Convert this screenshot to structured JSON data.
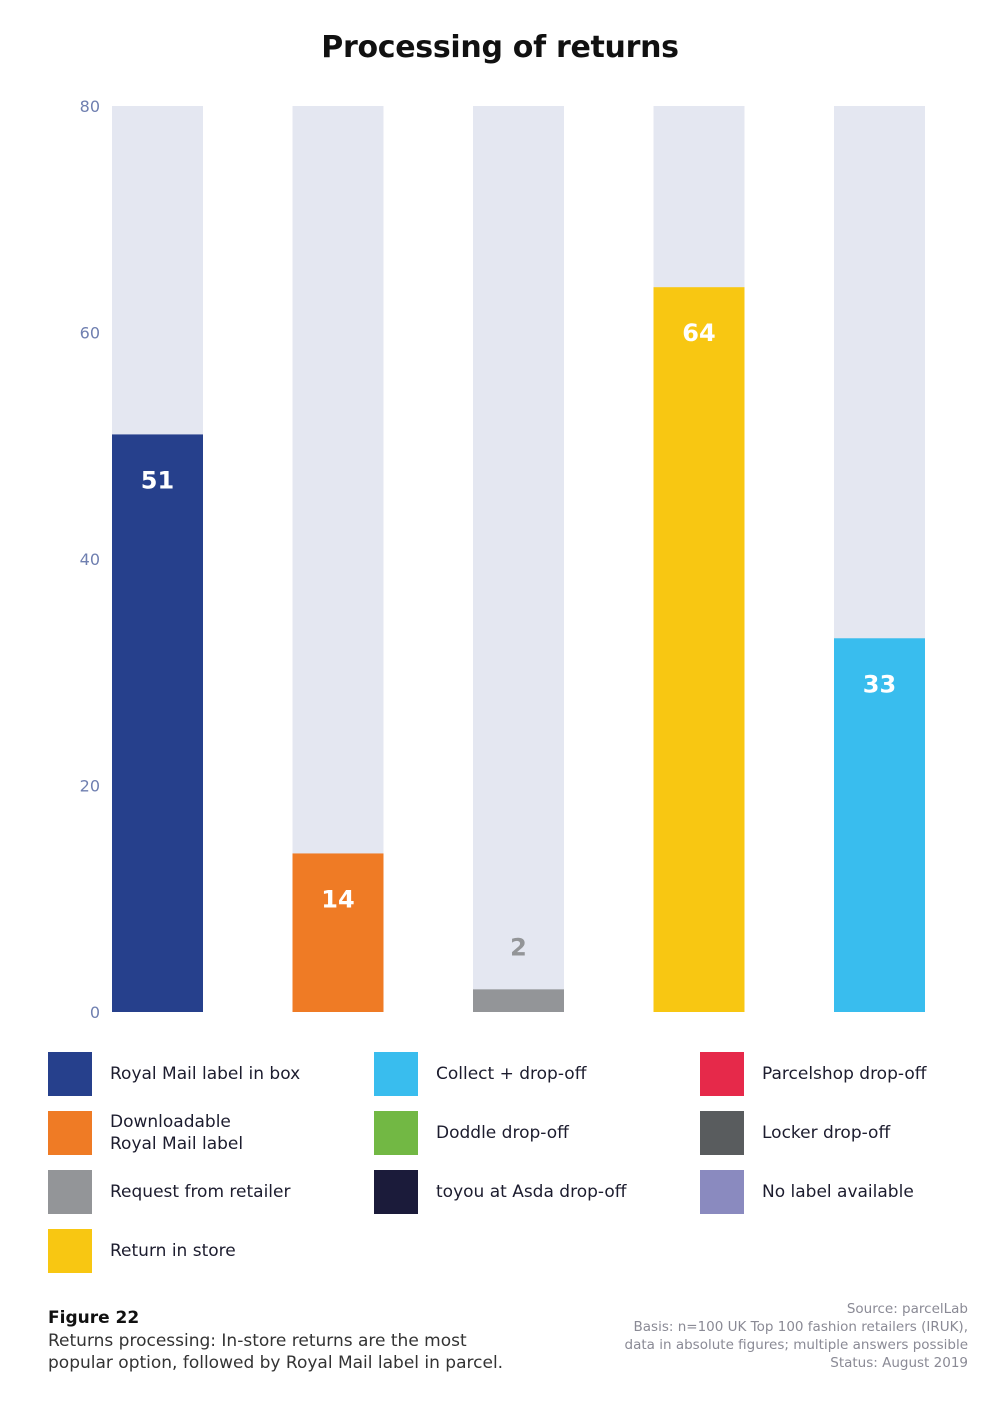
{
  "chart_data": {
    "type": "bar",
    "title": "Processing of returns",
    "categories": [
      "Royal Mail label in box",
      "Downloadable Royal Mail label",
      "Request from retailer",
      "Return in store",
      "Collect + drop-off"
    ],
    "values": [
      51,
      14,
      2,
      64,
      33
    ],
    "value_labels": [
      "51",
      "14",
      "2",
      "64",
      "33"
    ],
    "bar_colors": [
      "#26408c",
      "#ef7b25",
      "#939598",
      "#f8c712",
      "#39bdee"
    ],
    "label_colors": [
      "#ffffff",
      "#ffffff",
      "#939598",
      "#ffffff",
      "#ffffff"
    ],
    "background_bar_color": "#e4e7f1",
    "ylim": [
      0,
      80
    ],
    "yticks": [
      "0",
      "20",
      "40",
      "60",
      "80"
    ],
    "xlabel": "",
    "ylabel": "",
    "grid": false,
    "legend_position": "bottom",
    "legend": [
      {
        "label": "Royal Mail label in box",
        "color": "#26408c"
      },
      {
        "label": "Downloadable\nRoyal Mail label",
        "color": "#ef7b25"
      },
      {
        "label": "Request from retailer",
        "color": "#939598"
      },
      {
        "label": "Return in store",
        "color": "#f8c712"
      },
      {
        "label": "Collect + drop-off",
        "color": "#39bdee"
      },
      {
        "label": "Doddle drop-off",
        "color": "#72b844"
      },
      {
        "label": "toyou at Asda drop-off",
        "color": "#1b1b3a"
      },
      {
        "label": "Parcelshop drop-off",
        "color": "#e6294a"
      },
      {
        "label": "Locker drop-off",
        "color": "#595c5e"
      },
      {
        "label": "No label available",
        "color": "#8a8abf"
      }
    ]
  },
  "figure": {
    "number": "Figure 22",
    "caption_line1": "Returns processing: In-store returns are the most",
    "caption_line2": "popular option, followed by Royal Mail label in parcel."
  },
  "source": {
    "line1": "Source: parcelLab",
    "line2": "Basis: n=100 UK Top 100 fashion retailers (IRUK),",
    "line3": "data in absolute figures; multiple answers possible",
    "line4": "Status: August 2019"
  }
}
